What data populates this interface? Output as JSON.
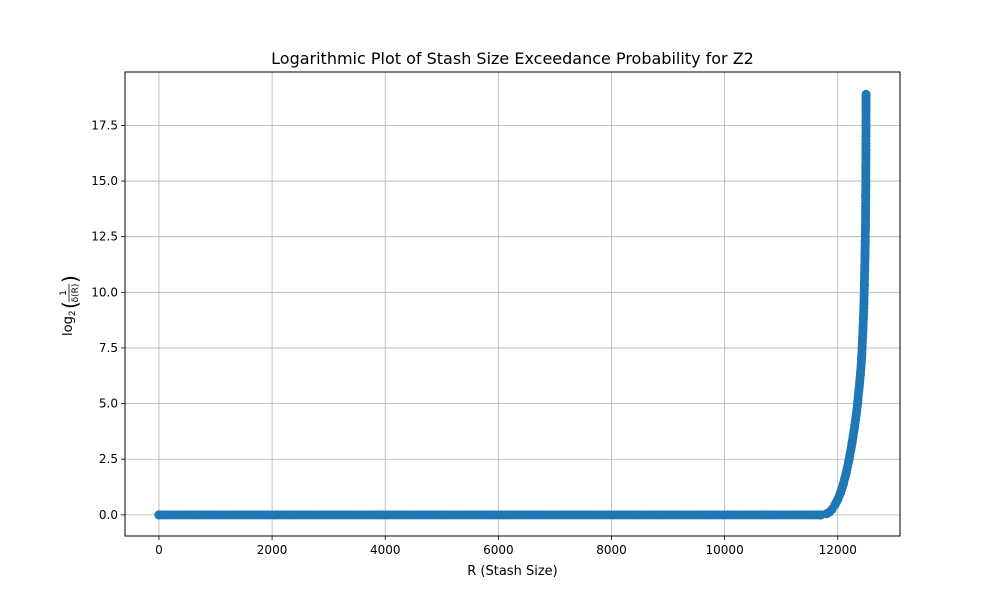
{
  "chart_data": {
    "type": "scatter",
    "title": "Logarithmic Plot of Stash Size Exceedance Probability for Z2",
    "xlabel": "R (Stash Size)",
    "ylabel": "log2(1/δ(R))",
    "ylabel_parts": {
      "base": "log",
      "sub": "2",
      "num": "1",
      "den": "δ(R)"
    },
    "xlim": [
      -600,
      13100
    ],
    "ylim": [
      -0.95,
      19.9
    ],
    "xticks": [
      0,
      2000,
      4000,
      6000,
      8000,
      10000,
      12000
    ],
    "xtick_labels": [
      "0",
      "2000",
      "4000",
      "6000",
      "8000",
      "10000",
      "12000"
    ],
    "yticks": [
      0.0,
      2.5,
      5.0,
      7.5,
      10.0,
      12.5,
      15.0,
      17.5
    ],
    "ytick_labels": [
      "0.0",
      "2.5",
      "5.0",
      "7.5",
      "10.0",
      "12.5",
      "15.0",
      "17.5"
    ],
    "grid": true,
    "legend": "none",
    "series": [
      {
        "color": "#1f77b4",
        "marker": "circle",
        "line": true,
        "x": [
          0,
          11700,
          11800,
          11850,
          11900,
          11950,
          12000,
          12050,
          12100,
          12150,
          12200,
          12250,
          12300,
          12350,
          12400,
          12420,
          12440,
          12460,
          12470,
          12480,
          12485,
          12490,
          12492,
          12494,
          12495,
          12496,
          12497,
          12498,
          12499,
          12500
        ],
        "y": [
          0.0,
          0.0,
          0.05,
          0.12,
          0.25,
          0.45,
          0.7,
          1.0,
          1.4,
          1.9,
          2.5,
          3.2,
          4.0,
          5.0,
          6.3,
          7.0,
          8.0,
          9.3,
          10.3,
          11.5,
          12.3,
          13.0,
          13.7,
          14.3,
          14.8,
          15.5,
          16.4,
          17.0,
          18.4,
          18.9
        ]
      }
    ]
  }
}
